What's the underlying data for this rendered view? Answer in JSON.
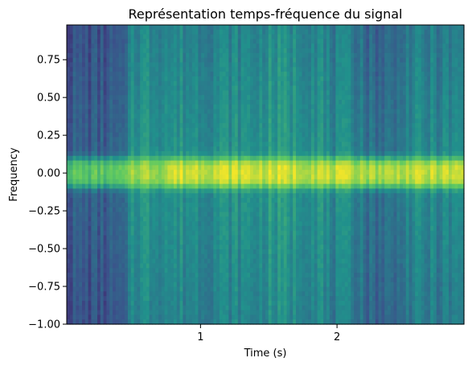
{
  "chart_data": {
    "type": "heatmap",
    "title": "Représentation temps-fréquence du signal",
    "xlabel": "Time (s)",
    "ylabel": "Frequency",
    "xlim": [
      0.02,
      2.93
    ],
    "ylim": [
      -1.0,
      0.98
    ],
    "xticks": [
      {
        "value": 1,
        "label": "1"
      },
      {
        "value": 2,
        "label": "2"
      }
    ],
    "yticks": [
      {
        "value": 0.75,
        "label": "0.75"
      },
      {
        "value": 0.5,
        "label": "0.50"
      },
      {
        "value": 0.25,
        "label": "0.25"
      },
      {
        "value": 0.0,
        "label": "0.00"
      },
      {
        "value": -0.25,
        "label": "−0.25"
      },
      {
        "value": -0.5,
        "label": "−0.50"
      },
      {
        "value": -0.75,
        "label": "−0.75"
      },
      {
        "value": -1.0,
        "label": "−1.00"
      }
    ],
    "colormap": "viridis",
    "colormap_stops": [
      "#440154",
      "#3b528b",
      "#21918c",
      "#5ec962",
      "#fde725"
    ],
    "time_segments": [
      {
        "t_start": 0.02,
        "t_end": 0.47,
        "background_level": 0.3,
        "band_level": 0.72
      },
      {
        "t_start": 0.47,
        "t_end": 0.75,
        "background_level": 0.52,
        "band_level": 0.86
      },
      {
        "t_start": 0.75,
        "t_end": 1.45,
        "background_level": 0.5,
        "band_level": 0.93
      },
      {
        "t_start": 1.45,
        "t_end": 1.9,
        "background_level": 0.53,
        "band_level": 0.92
      },
      {
        "t_start": 1.9,
        "t_end": 2.2,
        "background_level": 0.46,
        "band_level": 0.9
      },
      {
        "t_start": 2.2,
        "t_end": 2.45,
        "background_level": 0.38,
        "band_level": 0.88
      },
      {
        "t_start": 2.45,
        "t_end": 2.93,
        "background_level": 0.46,
        "band_level": 0.9
      }
    ],
    "frequency_band": {
      "f_low": -0.12,
      "f_high": 0.12,
      "peak_at": 0.0
    },
    "grid": false,
    "legend": "none"
  }
}
